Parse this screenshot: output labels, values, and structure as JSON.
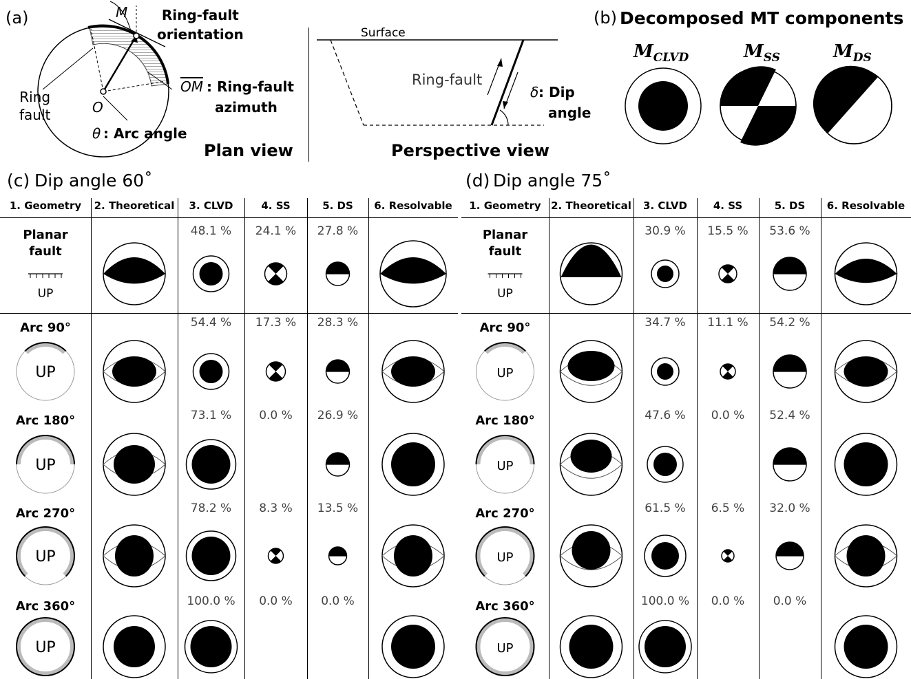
{
  "panel_a": {
    "letter": "(a)",
    "label_M": "M",
    "label_O": "O",
    "label_ring_fault_orientation": "Ring-fault\norientation",
    "label_OM": "OM",
    "label_azimuth_a": ": Ring-fault",
    "label_azimuth_b": "azimuth",
    "label_ring_fault": "Ring\nfault",
    "label_theta": "θ",
    "label_arc_angle": ": Arc angle",
    "plan_view": "Plan view",
    "surface": "Surface",
    "ring_fault_side": "Ring-fault",
    "delta": "δ",
    "dip_a": ": Dip",
    "dip_b": "angle",
    "perspective_view": "Perspective view"
  },
  "panel_b": {
    "letter": "(b)",
    "title": "Decomposed MT components",
    "labels": [
      "M",
      "M",
      "M"
    ],
    "subs": [
      "CLVD",
      "SS",
      "DS"
    ]
  },
  "panel_c": {
    "letter": "(c)",
    "title": "Dip angle 60˚",
    "headers": [
      "1. Geometry",
      "2. Theoretical",
      "3. CLVD",
      "4. SS",
      "5. DS",
      "6. Resolvable"
    ],
    "rows": [
      {
        "label": "Planar\nfault",
        "up": "UP",
        "clvd": "48.1 %",
        "ss": "24.1 %",
        "ds": "27.8 %"
      },
      {
        "label": "Arc 90°",
        "up": "UP",
        "clvd": "54.4 %",
        "ss": "17.3 %",
        "ds": "28.3 %"
      },
      {
        "label": "Arc 180°",
        "up": "UP",
        "clvd": "73.1 %",
        "ss": "0.0 %",
        "ds": "26.9 %"
      },
      {
        "label": "Arc 270°",
        "up": "UP",
        "clvd": "78.2 %",
        "ss": "8.3 %",
        "ds": "13.5 %"
      },
      {
        "label": "Arc 360°",
        "up": "UP",
        "clvd": "100.0 %",
        "ss": "0.0 %",
        "ds": "0.0 %"
      }
    ]
  },
  "panel_d": {
    "letter": "(d)",
    "title": "Dip angle 75˚",
    "headers": [
      "1. Geometry",
      "2. Theoretical",
      "3. CLVD",
      "4. SS",
      "5. DS",
      "6. Resolvable"
    ],
    "rows": [
      {
        "label": "Planar\nfault",
        "up": "UP",
        "clvd": "30.9 %",
        "ss": "15.5 %",
        "ds": "53.6 %"
      },
      {
        "label": "Arc 90°",
        "up": "UP",
        "clvd": "34.7 %",
        "ss": "11.1 %",
        "ds": "54.2 %"
      },
      {
        "label": "Arc 180°",
        "up": "UP",
        "clvd": "47.6 %",
        "ss": "0.0 %",
        "ds": "52.4 %"
      },
      {
        "label": "Arc 270°",
        "up": "UP",
        "clvd": "61.5 %",
        "ss": "6.5 %",
        "ds": "32.0 %"
      },
      {
        "label": "Arc 360°",
        "up": "UP",
        "clvd": "100.0 %",
        "ss": "0.0 %",
        "ds": "0.0 %"
      }
    ]
  }
}
